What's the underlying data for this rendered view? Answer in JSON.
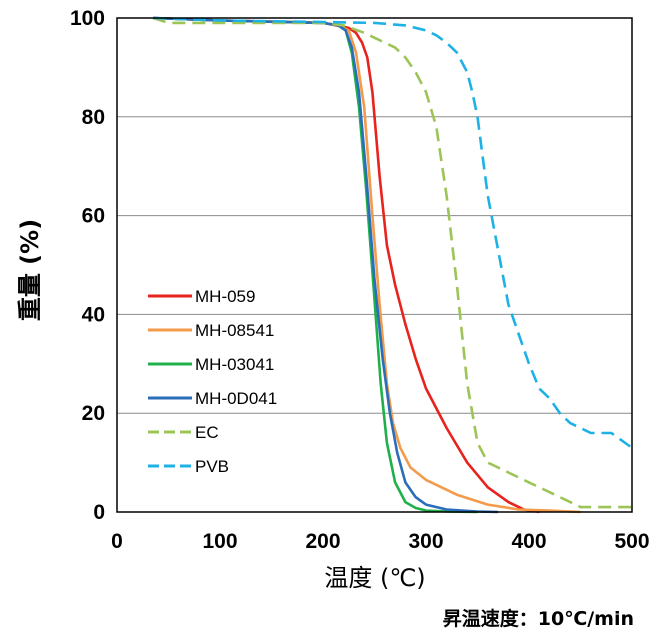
{
  "chart_data": {
    "type": "line",
    "title": "",
    "xlabel": "温度 (℃)",
    "ylabel": "重量 (%)",
    "note": "昇温速度：10℃/min",
    "xlim": [
      0,
      500
    ],
    "ylim": [
      0,
      100
    ],
    "xticks": [
      "0",
      "100",
      "200",
      "300",
      "400",
      "500"
    ],
    "yticks": [
      "0",
      "20",
      "40",
      "60",
      "80",
      "100"
    ],
    "grid": "horizontal",
    "legend_position": "lower-left",
    "series": [
      {
        "name": "MH-059",
        "color": "#e8231d",
        "dash": "solid",
        "x": [
          35,
          100,
          200,
          225,
          232,
          238,
          243,
          248,
          255,
          262,
          270,
          280,
          290,
          300,
          320,
          340,
          360,
          380,
          395,
          410
        ],
        "y": [
          100,
          99.5,
          99,
          98,
          97,
          95,
          92,
          85,
          68,
          54,
          46,
          38,
          31,
          25,
          17,
          10,
          5,
          2,
          0.5,
          0
        ]
      },
      {
        "name": "MH-08541",
        "color": "#f39a4b",
        "dash": "solid",
        "x": [
          35,
          100,
          200,
          215,
          225,
          232,
          240,
          248,
          255,
          262,
          268,
          275,
          285,
          300,
          330,
          360,
          390,
          420,
          450
        ],
        "y": [
          100,
          99.5,
          99,
          98.5,
          97.5,
          93,
          82,
          60,
          42,
          26,
          18,
          13,
          9,
          6.5,
          3.5,
          1.5,
          0.5,
          0.3,
          0
        ]
      },
      {
        "name": "MH-03041",
        "color": "#1fb04b",
        "dash": "solid",
        "x": [
          35,
          100,
          200,
          215,
          222,
          228,
          235,
          242,
          250,
          256,
          262,
          270,
          280,
          290,
          300,
          320,
          350
        ],
        "y": [
          100,
          99.5,
          99,
          98.5,
          97.5,
          93,
          82,
          65,
          43,
          26,
          14,
          6,
          2,
          0.8,
          0.3,
          0.1,
          0
        ]
      },
      {
        "name": "MH-0D041",
        "color": "#2a6eb9",
        "dash": "solid",
        "x": [
          35,
          100,
          200,
          215,
          222,
          228,
          235,
          242,
          250,
          258,
          265,
          272,
          280,
          290,
          300,
          320,
          350,
          370
        ],
        "y": [
          100,
          99.5,
          99,
          98.5,
          97.5,
          94,
          85,
          68,
          47,
          31,
          20,
          12,
          6,
          3,
          1.5,
          0.5,
          0.1,
          0
        ]
      },
      {
        "name": "EC",
        "color": "#9dc456",
        "dash": "dash",
        "x": [
          35,
          50,
          100,
          200,
          220,
          240,
          260,
          270,
          280,
          290,
          300,
          310,
          320,
          330,
          340,
          350,
          360,
          370,
          380,
          400,
          420,
          440,
          450,
          470,
          500
        ],
        "y": [
          100,
          99,
          99,
          99,
          98.5,
          97,
          95,
          94,
          92,
          89,
          85,
          78,
          64,
          46,
          26,
          14,
          10,
          9,
          8,
          6,
          4,
          2,
          1,
          1,
          1
        ]
      },
      {
        "name": "PVB",
        "color": "#1eb1e6",
        "dash": "dash",
        "x": [
          35,
          100,
          200,
          250,
          280,
          300,
          310,
          320,
          330,
          340,
          345,
          350,
          355,
          360,
          370,
          380,
          390,
          400,
          410,
          420,
          430,
          440,
          450,
          460,
          480,
          500
        ],
        "y": [
          100,
          99.5,
          99.2,
          99,
          98.5,
          97.5,
          96.5,
          95,
          93,
          89,
          85,
          80,
          72,
          64,
          53,
          42,
          36,
          30,
          25,
          23,
          20,
          18,
          17,
          16,
          16,
          13
        ]
      }
    ]
  }
}
